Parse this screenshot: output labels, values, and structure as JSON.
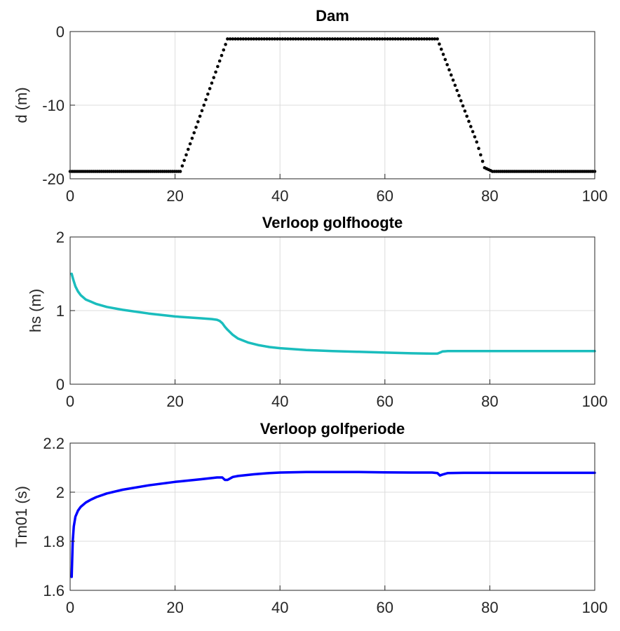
{
  "chart_data": [
    {
      "id": "dam",
      "type": "scatter",
      "title": "Dam",
      "xlabel": "",
      "ylabel": "d (m)",
      "xlim": [
        0,
        100
      ],
      "ylim": [
        -20,
        0
      ],
      "xticks": [
        0,
        20,
        40,
        60,
        80,
        100
      ],
      "yticks": [
        -20,
        -10,
        0
      ],
      "grid": true,
      "series_color": "#000000",
      "x": [
        0,
        1.5,
        3,
        4.5,
        6,
        7.5,
        9,
        10.5,
        12,
        13.5,
        15,
        16.5,
        18,
        19.5,
        21,
        22.5,
        24,
        25.5,
        27,
        28.5,
        30,
        32,
        34,
        36,
        38,
        40,
        42,
        44,
        46,
        48,
        50,
        52,
        54,
        56,
        58,
        60,
        62,
        64,
        66,
        68,
        70,
        71.5,
        73,
        74.5,
        76,
        77.5,
        79,
        80.5,
        82,
        83.5,
        85,
        86.5,
        88,
        89.5,
        91,
        92.5,
        94,
        95.5,
        97,
        98.5,
        100
      ],
      "y": [
        -19,
        -19,
        -19,
        -19,
        -19,
        -19,
        -19,
        -19,
        -19,
        -19,
        -19,
        -19,
        -19,
        -19,
        -19,
        -16,
        -13,
        -10,
        -7,
        -4,
        -1,
        -1,
        -1,
        -1,
        -1,
        -1,
        -1,
        -1,
        -1,
        -1,
        -1,
        -1,
        -1,
        -1,
        -1,
        -1,
        -1,
        -1,
        -1,
        -1,
        -1,
        -3.8,
        -6.6,
        -9.4,
        -12.2,
        -15,
        -18.5,
        -19,
        -19,
        -19,
        -19,
        -19,
        -19,
        -19,
        -19,
        -19,
        -19,
        -19,
        -19,
        -19,
        -19
      ]
    },
    {
      "id": "hs",
      "type": "line",
      "title": "Verloop golfhoogte",
      "xlabel": "",
      "ylabel": "hs (m)",
      "xlim": [
        0,
        100
      ],
      "ylim": [
        0,
        2
      ],
      "xticks": [
        0,
        20,
        40,
        60,
        80,
        100
      ],
      "yticks": [
        0,
        1,
        2
      ],
      "grid": true,
      "series_color": "#1ABDBD",
      "x": [
        0.3,
        0.6,
        1,
        1.5,
        2,
        3,
        4,
        5,
        7,
        10,
        15,
        20,
        25,
        27,
        28,
        28.5,
        29,
        29.5,
        30,
        31,
        32,
        34,
        36,
        38,
        40,
        45,
        50,
        55,
        60,
        65,
        69,
        70,
        70.5,
        71,
        72,
        75,
        80,
        85,
        90,
        95,
        100
      ],
      "y": [
        1.5,
        1.42,
        1.33,
        1.26,
        1.21,
        1.15,
        1.12,
        1.09,
        1.05,
        1.01,
        0.96,
        0.92,
        0.895,
        0.885,
        0.875,
        0.86,
        0.83,
        0.78,
        0.74,
        0.67,
        0.62,
        0.565,
        0.53,
        0.505,
        0.49,
        0.465,
        0.45,
        0.44,
        0.43,
        0.42,
        0.415,
        0.415,
        0.43,
        0.445,
        0.45,
        0.45,
        0.45,
        0.45,
        0.45,
        0.45,
        0.45
      ]
    },
    {
      "id": "tm01",
      "type": "line",
      "title": "Verloop golfperiode",
      "xlabel": "",
      "ylabel": "Tm01 (s)",
      "xlim": [
        0,
        100
      ],
      "ylim": [
        1.6,
        2.2
      ],
      "xticks": [
        0,
        20,
        40,
        60,
        80,
        100
      ],
      "yticks": [
        1.6,
        1.8,
        2,
        2.2
      ],
      "grid": true,
      "series_color": "#0000FF",
      "x": [
        0.3,
        0.5,
        0.7,
        1,
        1.5,
        2,
        3,
        4,
        5,
        7,
        10,
        15,
        20,
        25,
        28,
        29,
        29.5,
        30,
        31,
        32,
        35,
        38,
        40,
        45,
        50,
        55,
        60,
        65,
        69,
        70,
        70.5,
        71,
        72,
        75,
        80,
        85,
        90,
        95,
        100
      ],
      "y": [
        1.655,
        1.8,
        1.86,
        1.9,
        1.925,
        1.94,
        1.958,
        1.97,
        1.98,
        1.995,
        2.01,
        2.028,
        2.042,
        2.053,
        2.06,
        2.06,
        2.05,
        2.05,
        2.062,
        2.066,
        2.073,
        2.078,
        2.08,
        2.082,
        2.082,
        2.082,
        2.081,
        2.08,
        2.08,
        2.078,
        2.068,
        2.072,
        2.078,
        2.079,
        2.079,
        2.079,
        2.079,
        2.079,
        2.079
      ]
    }
  ]
}
